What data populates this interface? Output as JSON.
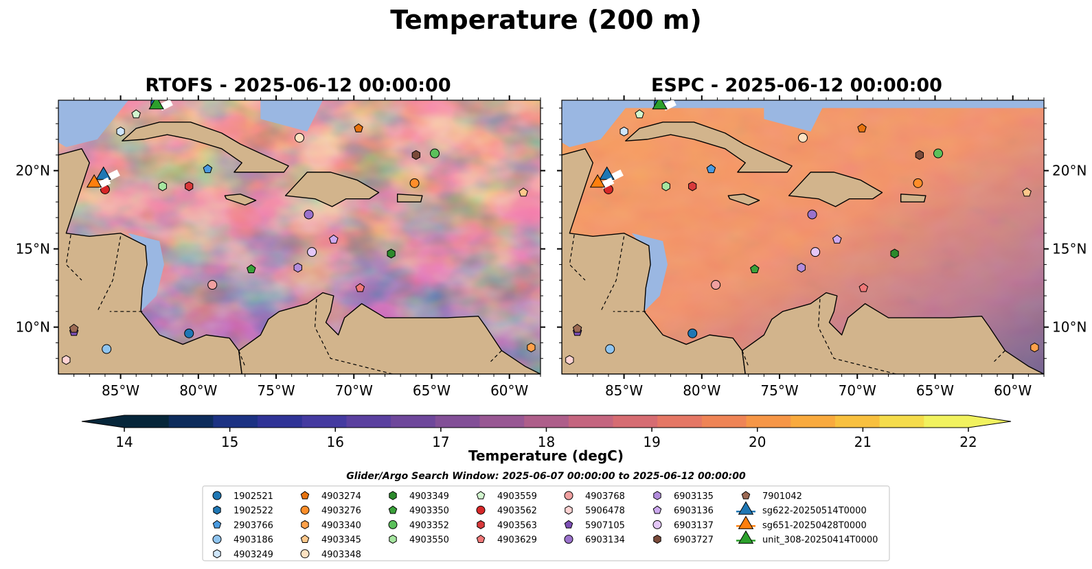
{
  "figure": {
    "title": "Temperature (200 m)"
  },
  "panels": [
    {
      "title": "RTOFS - 2025-06-12 00:00:00",
      "field": "rtofs"
    },
    {
      "title": "ESPC - 2025-06-12 00:00:00",
      "field": "espc"
    }
  ],
  "axes": {
    "lon_ticks": [
      {
        "value": -85,
        "label": "85°W"
      },
      {
        "value": -80,
        "label": "80°W"
      },
      {
        "value": -75,
        "label": "75°W"
      },
      {
        "value": -70,
        "label": "70°W"
      },
      {
        "value": -65,
        "label": "65°W"
      },
      {
        "value": -60,
        "label": "60°W"
      }
    ],
    "lat_ticks": [
      {
        "value": 20,
        "label": "20°N"
      },
      {
        "value": 15,
        "label": "15°N"
      },
      {
        "value": 10,
        "label": "10°N"
      }
    ],
    "lon_range": [
      -89,
      -58
    ],
    "lat_range": [
      7,
      24.5
    ]
  },
  "colorbar": {
    "label": "Temperature (degC)",
    "range": [
      14,
      22
    ],
    "extend": "both",
    "ticks": [
      {
        "value": 14,
        "label": "14"
      },
      {
        "value": 15,
        "label": "15"
      },
      {
        "value": 16,
        "label": "16"
      },
      {
        "value": 17,
        "label": "17"
      },
      {
        "value": 18,
        "label": "18"
      },
      {
        "value": 19,
        "label": "19"
      },
      {
        "value": 20,
        "label": "20"
      },
      {
        "value": 21,
        "label": "21"
      },
      {
        "value": 22,
        "label": "22"
      }
    ],
    "colors": [
      "#06263a",
      "#0d2c5c",
      "#1c3283",
      "#2f3396",
      "#443aa0",
      "#5a409f",
      "#6e479b",
      "#824f97",
      "#985793",
      "#ae5e8a",
      "#c4657f",
      "#d66c72",
      "#e57765",
      "#ef8456",
      "#f69647",
      "#f9aa3e",
      "#f8c03f",
      "#f5dc4c",
      "#f1f25f"
    ],
    "under_color": "#06263a",
    "over_color": "#f1f25f"
  },
  "search_window": {
    "text": "Glider/Argo Search Window: 2025-06-07 00:00:00 to 2025-06-12 00:00:00"
  },
  "legend": {
    "columns": [
      [
        {
          "label": "1902521",
          "shape": "circle",
          "color": "#1f77b4"
        },
        {
          "label": "1902522",
          "shape": "hexagon",
          "color": "#1f77b4"
        },
        {
          "label": "2903766",
          "shape": "pentagon",
          "color": "#4a9be0"
        },
        {
          "label": "4903186",
          "shape": "circle",
          "color": "#8fc4ef"
        },
        {
          "label": "4903249",
          "shape": "hexagon",
          "color": "#cfe6fb"
        }
      ],
      [
        {
          "label": "4903274",
          "shape": "pentagon",
          "color": "#e6730f"
        },
        {
          "label": "4903276",
          "shape": "circle",
          "color": "#ff8e2a"
        },
        {
          "label": "4903340",
          "shape": "hexagon",
          "color": "#ffa14a"
        },
        {
          "label": "4903345",
          "shape": "pentagon",
          "color": "#ffc88b"
        },
        {
          "label": "4903348",
          "shape": "circle",
          "color": "#ffe2c2"
        }
      ],
      [
        {
          "label": "4903349",
          "shape": "hexagon",
          "color": "#2c8a2c"
        },
        {
          "label": "4903350",
          "shape": "pentagon",
          "color": "#3aa13a"
        },
        {
          "label": "4903352",
          "shape": "circle",
          "color": "#5bc05b"
        },
        {
          "label": "4903550",
          "shape": "hexagon",
          "color": "#a6e6a0"
        }
      ],
      [
        {
          "label": "4903559",
          "shape": "pentagon",
          "color": "#d2f7cf"
        },
        {
          "label": "4903562",
          "shape": "circle",
          "color": "#d62728"
        },
        {
          "label": "4903563",
          "shape": "hexagon",
          "color": "#d9393b"
        },
        {
          "label": "4903629",
          "shape": "pentagon",
          "color": "#f07878"
        }
      ],
      [
        {
          "label": "4903768",
          "shape": "circle",
          "color": "#f0a0a0"
        },
        {
          "label": "5906478",
          "shape": "hexagon",
          "color": "#ffd3d3"
        },
        {
          "label": "5907105",
          "shape": "pentagon",
          "color": "#7d4fb5"
        },
        {
          "label": "6903134",
          "shape": "circle",
          "color": "#9b72cc"
        }
      ],
      [
        {
          "label": "6903135",
          "shape": "hexagon",
          "color": "#b28cdc"
        },
        {
          "label": "6903136",
          "shape": "pentagon",
          "color": "#cda9ef"
        },
        {
          "label": "6903137",
          "shape": "circle",
          "color": "#e4c7f7"
        },
        {
          "label": "6903727",
          "shape": "hexagon",
          "color": "#7a4a3a"
        }
      ],
      [
        {
          "label": "7901042",
          "shape": "pentagon",
          "color": "#9c6a54"
        },
        {
          "label": "sg622-20250514T0000",
          "shape": "triangle-line",
          "color": "#1f77b4"
        },
        {
          "label": "sg651-20250428T0000",
          "shape": "triangle-line",
          "color": "#ff7f0e"
        },
        {
          "label": "unit_308-20250414T0000",
          "shape": "triangle-line",
          "color": "#2ca02c"
        }
      ]
    ]
  },
  "map_data": {
    "argo_floats": [
      {
        "id": "1902521",
        "lon": -80.6,
        "lat": 9.6
      },
      {
        "id": "1902522",
        "lon": -82.8,
        "lat": 24.3
      },
      {
        "id": "2903766",
        "lon": -79.4,
        "lat": 20.1
      },
      {
        "id": "4903186",
        "lon": -85.9,
        "lat": 8.6
      },
      {
        "id": "4903249",
        "lon": -85.0,
        "lat": 22.5
      },
      {
        "id": "4903274",
        "lon": -69.7,
        "lat": 22.7
      },
      {
        "id": "4903276",
        "lon": -66.1,
        "lat": 19.2
      },
      {
        "id": "4903340",
        "lon": -58.6,
        "lat": 8.7
      },
      {
        "id": "4903345",
        "lon": -59.1,
        "lat": 18.6
      },
      {
        "id": "4903348",
        "lon": -73.5,
        "lat": 22.1
      },
      {
        "id": "4903349",
        "lon": -67.6,
        "lat": 14.7
      },
      {
        "id": "4903350",
        "lon": -76.6,
        "lat": 13.7
      },
      {
        "id": "4903352",
        "lon": -64.8,
        "lat": 21.1
      },
      {
        "id": "4903550",
        "lon": -82.3,
        "lat": 19.0
      },
      {
        "id": "4903559",
        "lon": -84.0,
        "lat": 23.6
      },
      {
        "id": "4903562",
        "lon": -86.0,
        "lat": 18.8
      },
      {
        "id": "4903563",
        "lon": -80.6,
        "lat": 19.0
      },
      {
        "id": "4903629",
        "lon": -69.6,
        "lat": 12.5
      },
      {
        "id": "4903768",
        "lon": -79.1,
        "lat": 12.7
      },
      {
        "id": "5906478",
        "lon": -88.5,
        "lat": 7.9
      },
      {
        "id": "5907105",
        "lon": -88.0,
        "lat": 9.7
      },
      {
        "id": "6903134",
        "lon": -72.9,
        "lat": 17.2
      },
      {
        "id": "6903135",
        "lon": -73.6,
        "lat": 13.8
      },
      {
        "id": "6903136",
        "lon": -71.3,
        "lat": 15.6
      },
      {
        "id": "6903137",
        "lon": -72.7,
        "lat": 14.8
      },
      {
        "id": "6903727",
        "lon": -66.0,
        "lat": 21.0
      },
      {
        "id": "7901042",
        "lon": -88.0,
        "lat": 9.9
      }
    ],
    "gliders": [
      {
        "id": "sg622-20250514T0000",
        "lon": -86.1,
        "lat": 19.7
      },
      {
        "id": "sg651-20250428T0000",
        "lon": -86.7,
        "lat": 19.2
      },
      {
        "id": "unit_308-20250414T0000",
        "lon": -82.7,
        "lat": 24.2
      }
    ]
  }
}
